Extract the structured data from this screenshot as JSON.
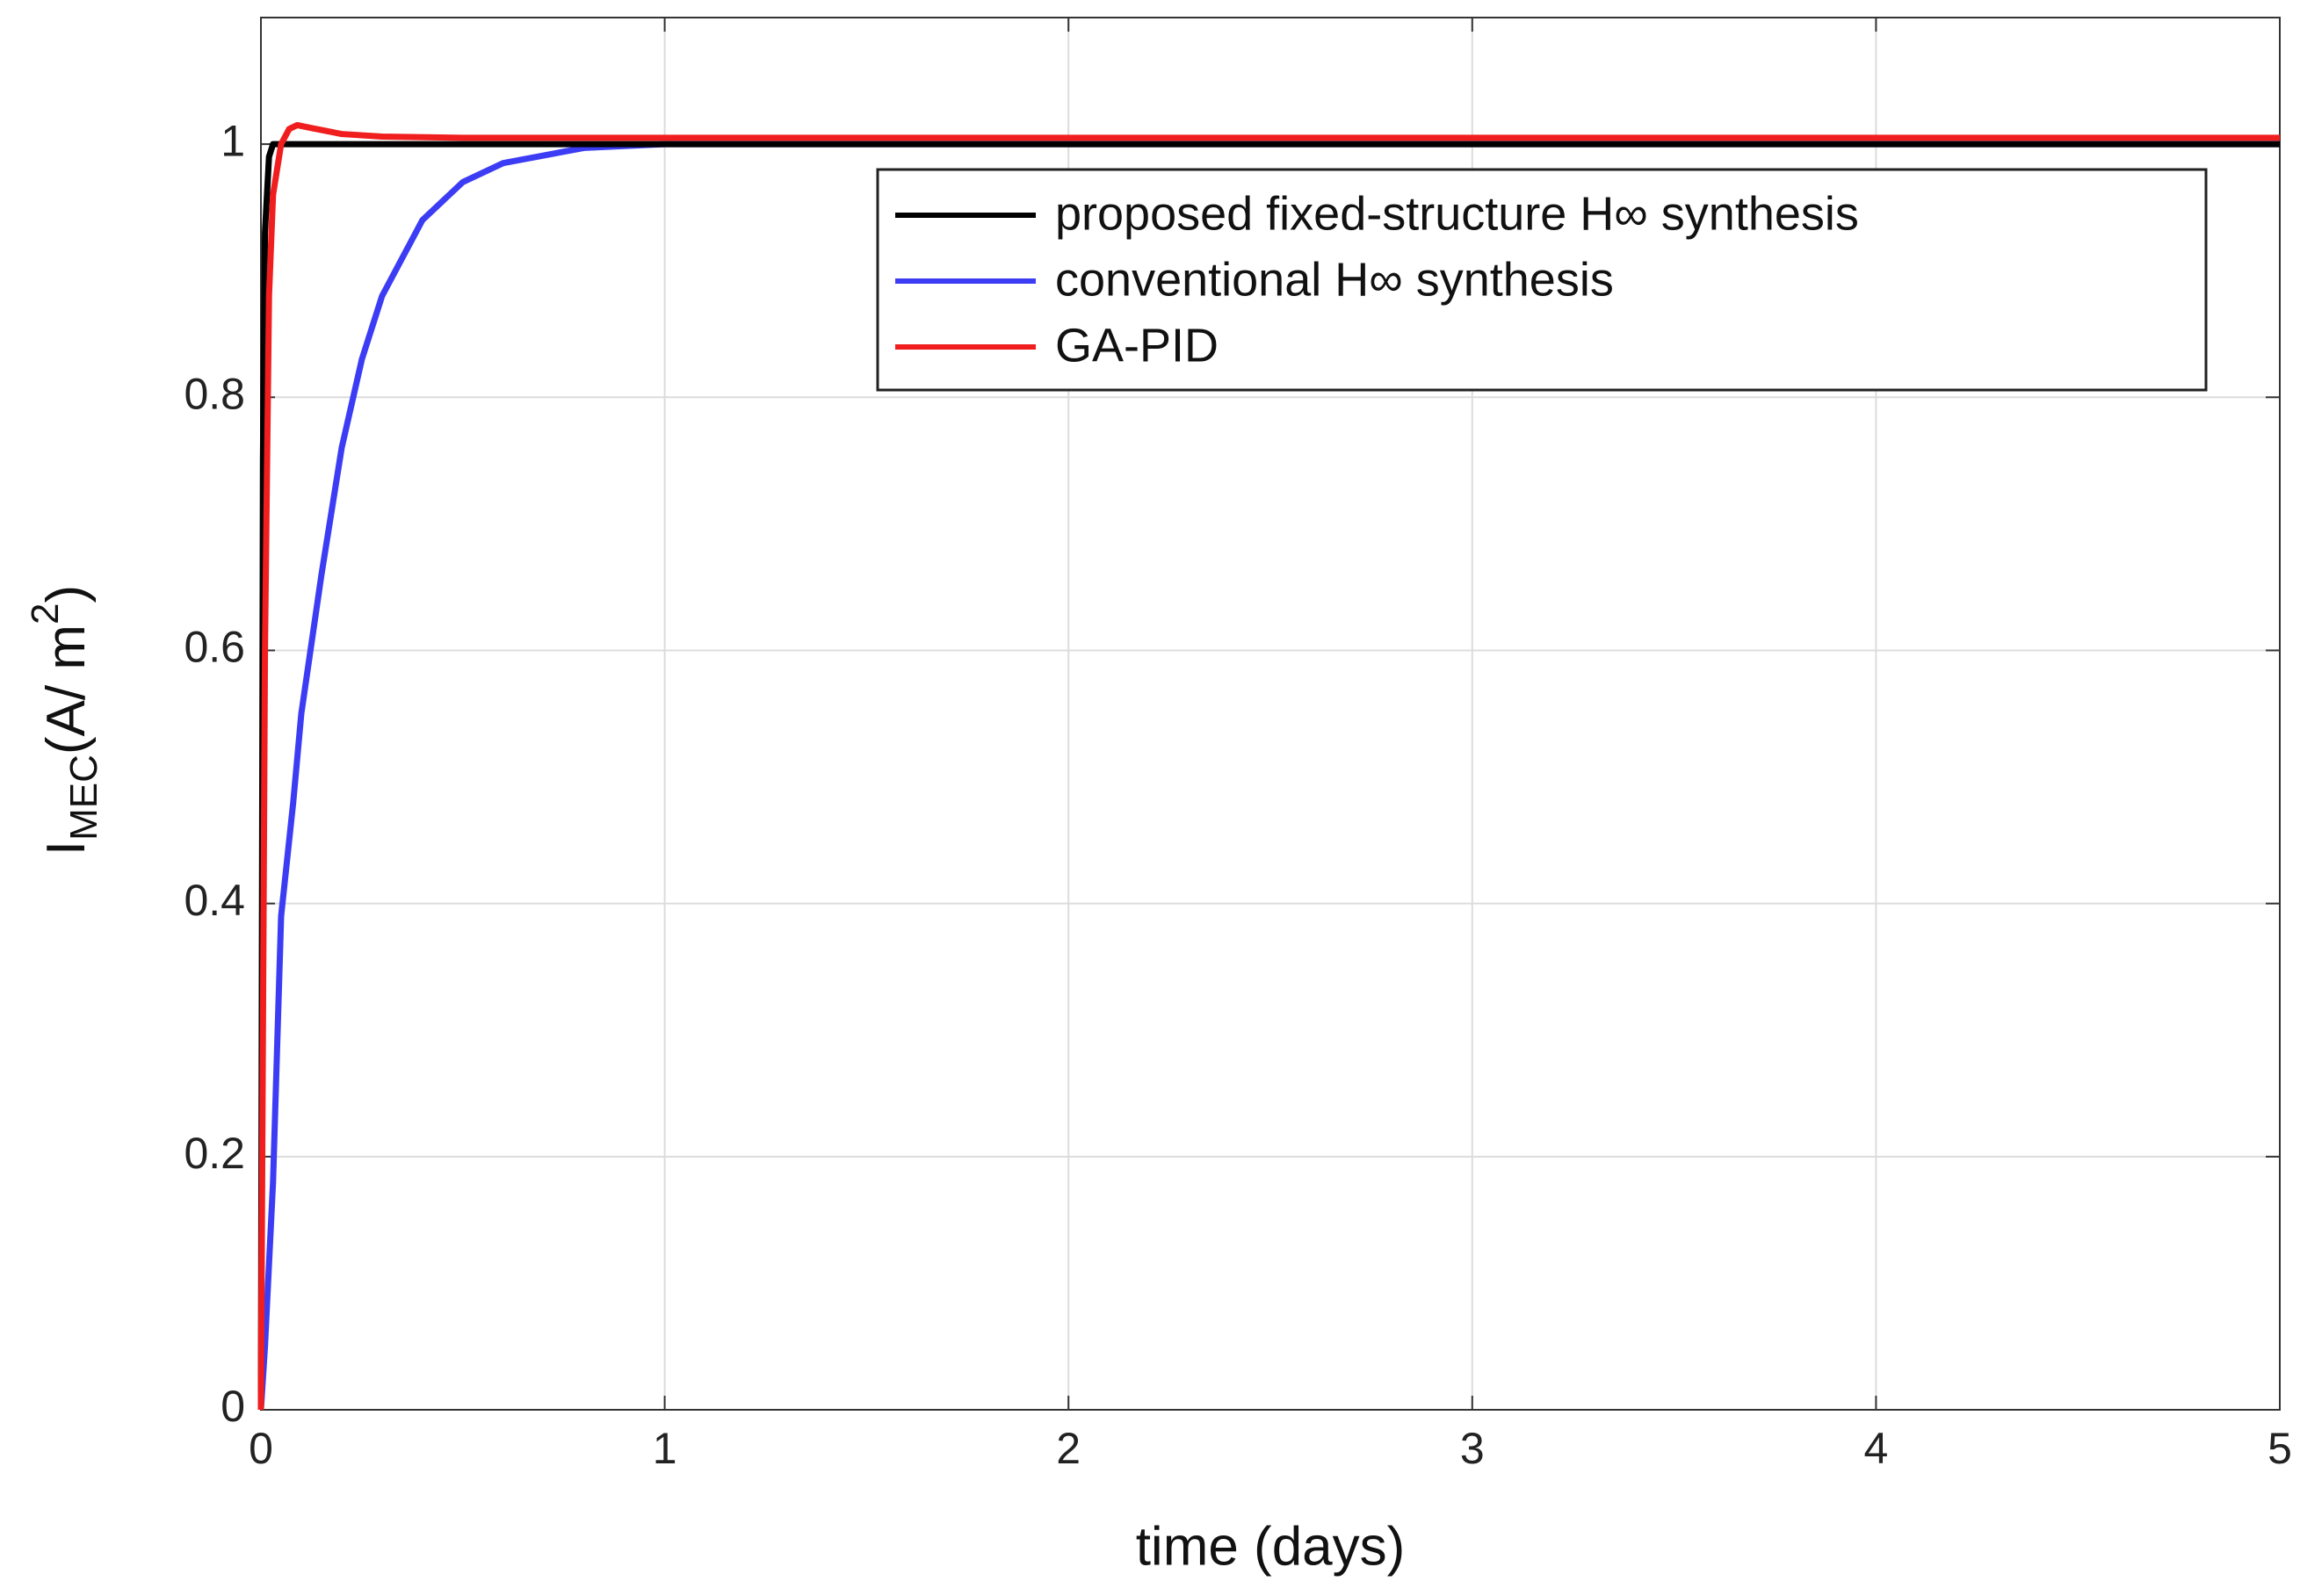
{
  "chart_data": {
    "type": "line",
    "x_label": "time (days)",
    "y_label": {
      "base": "I",
      "sub": "MEC",
      "main": "(A/ m",
      "sup": "2",
      "end": ")"
    },
    "series": [
      {
        "name": "proposed fixed-structure H∞ synthesis",
        "color": "#000000",
        "x": [
          0,
          0.005,
          0.01,
          0.02,
          0.03,
          0.05,
          0.1,
          5
        ],
        "values": [
          0,
          0.75,
          0.93,
          0.99,
          1.0,
          1.0,
          1.0,
          1.0
        ]
      },
      {
        "name": "conventional H∞ synthesis",
        "color": "#3c3cf5",
        "x": [
          0,
          0.01,
          0.03,
          0.05,
          0.08,
          0.1,
          0.15,
          0.2,
          0.25,
          0.3,
          0.4,
          0.5,
          0.6,
          0.8,
          1,
          5
        ],
        "values": [
          0,
          0.05,
          0.18,
          0.39,
          0.48,
          0.55,
          0.66,
          0.76,
          0.83,
          0.88,
          0.94,
          0.97,
          0.985,
          0.997,
          1.0,
          1.0
        ]
      },
      {
        "name": "GA-PID",
        "color": "#f01e1e",
        "x": [
          0,
          0.01,
          0.02,
          0.03,
          0.05,
          0.07,
          0.09,
          0.12,
          0.2,
          0.3,
          0.5,
          1,
          5
        ],
        "values": [
          0,
          0.6,
          0.88,
          0.96,
          1.0,
          1.012,
          1.015,
          1.013,
          1.008,
          1.006,
          1.005,
          1.005,
          1.005
        ]
      }
    ],
    "xlim": [
      0,
      5
    ],
    "xticks": [
      0,
      1,
      2,
      3,
      4,
      5
    ],
    "ylim": [
      0,
      1.1
    ],
    "yticks": [
      0,
      0.2,
      0.4,
      0.6,
      0.8,
      1
    ],
    "grid": true,
    "legend": "upper right"
  }
}
